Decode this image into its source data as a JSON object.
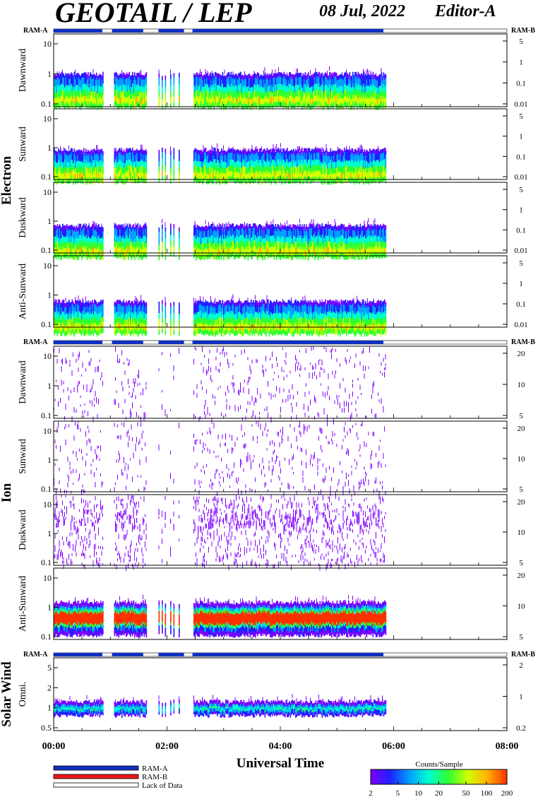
{
  "header": {
    "title": "GEOTAIL / LEP",
    "date": "08 Jul, 2022",
    "editor": "Editor-A"
  },
  "ram_labels": {
    "left": "RAM-A",
    "right": "RAM-B"
  },
  "chart_data": {
    "type": "heatmap",
    "x_axis": {
      "label": "Universal Time",
      "range": [
        "00:00",
        "08:00"
      ],
      "ticks": [
        "00:00",
        "02:00",
        "04:00",
        "06:00",
        "08:00"
      ]
    },
    "data_end": "05:52",
    "data_gaps": [
      [
        "00:52",
        "01:03"
      ],
      [
        "01:38",
        "01:51"
      ],
      [
        "02:14",
        "02:27"
      ]
    ],
    "groups": [
      {
        "name": "Electron",
        "panels": [
          {
            "label": "Dawnward",
            "left_ticks": [
              "10",
              "1",
              "0.1"
            ],
            "right_ticks": [
              "5",
              "1",
              "0.1",
              "0.01"
            ]
          },
          {
            "label": "Sunward",
            "left_ticks": [
              "10",
              "1",
              "0.1"
            ],
            "right_ticks": [
              "5",
              "1",
              "0.1",
              "0.01"
            ]
          },
          {
            "label": "Duskward",
            "left_ticks": [
              "10",
              "1",
              "0.1"
            ],
            "right_ticks": [
              "5",
              "1",
              "0.1",
              "0.01"
            ]
          },
          {
            "label": "Anti-Sunward",
            "left_ticks": [
              "10",
              "1",
              "0.1"
            ],
            "right_ticks": [
              "5",
              "1",
              "0.1",
              "0.01"
            ]
          }
        ]
      },
      {
        "name": "Ion",
        "panels": [
          {
            "label": "Dawnward",
            "left_ticks": [
              "10",
              "1",
              "0.1"
            ],
            "right_ticks": [
              "20",
              "10",
              "5"
            ]
          },
          {
            "label": "Sunward",
            "left_ticks": [
              "10",
              "1",
              "0.1"
            ],
            "right_ticks": [
              "20",
              "10",
              "5"
            ]
          },
          {
            "label": "Duskward",
            "left_ticks": [
              "10",
              "1",
              "0.1"
            ],
            "right_ticks": [
              "20",
              "10",
              "5"
            ]
          },
          {
            "label": "Anti-Sunward",
            "left_ticks": [
              "10",
              "1",
              "0.1"
            ],
            "right_ticks": [
              "20",
              "10",
              "5"
            ]
          }
        ]
      },
      {
        "name": "Solar Wind",
        "panels": [
          {
            "label": "Omni.",
            "left_ticks": [
              "5",
              "2",
              "1",
              "0.5"
            ],
            "right_ticks": [
              "2",
              "1",
              "0.2"
            ]
          }
        ]
      }
    ],
    "legend": {
      "items": [
        "RAM-A",
        "RAM-B",
        "Lack of Data"
      ],
      "colors": [
        "#1030c0",
        "#e81818",
        "#ffffff"
      ]
    },
    "colorbar": {
      "title": "Counts/Sample",
      "ticks": [
        "2",
        "5",
        "10",
        "20",
        "50",
        "100",
        "200"
      ],
      "colors": [
        "#7a00ff",
        "#2020ff",
        "#00a0ff",
        "#00ffd0",
        "#30ff30",
        "#d0ff00",
        "#ffb000",
        "#ff3000"
      ]
    }
  }
}
